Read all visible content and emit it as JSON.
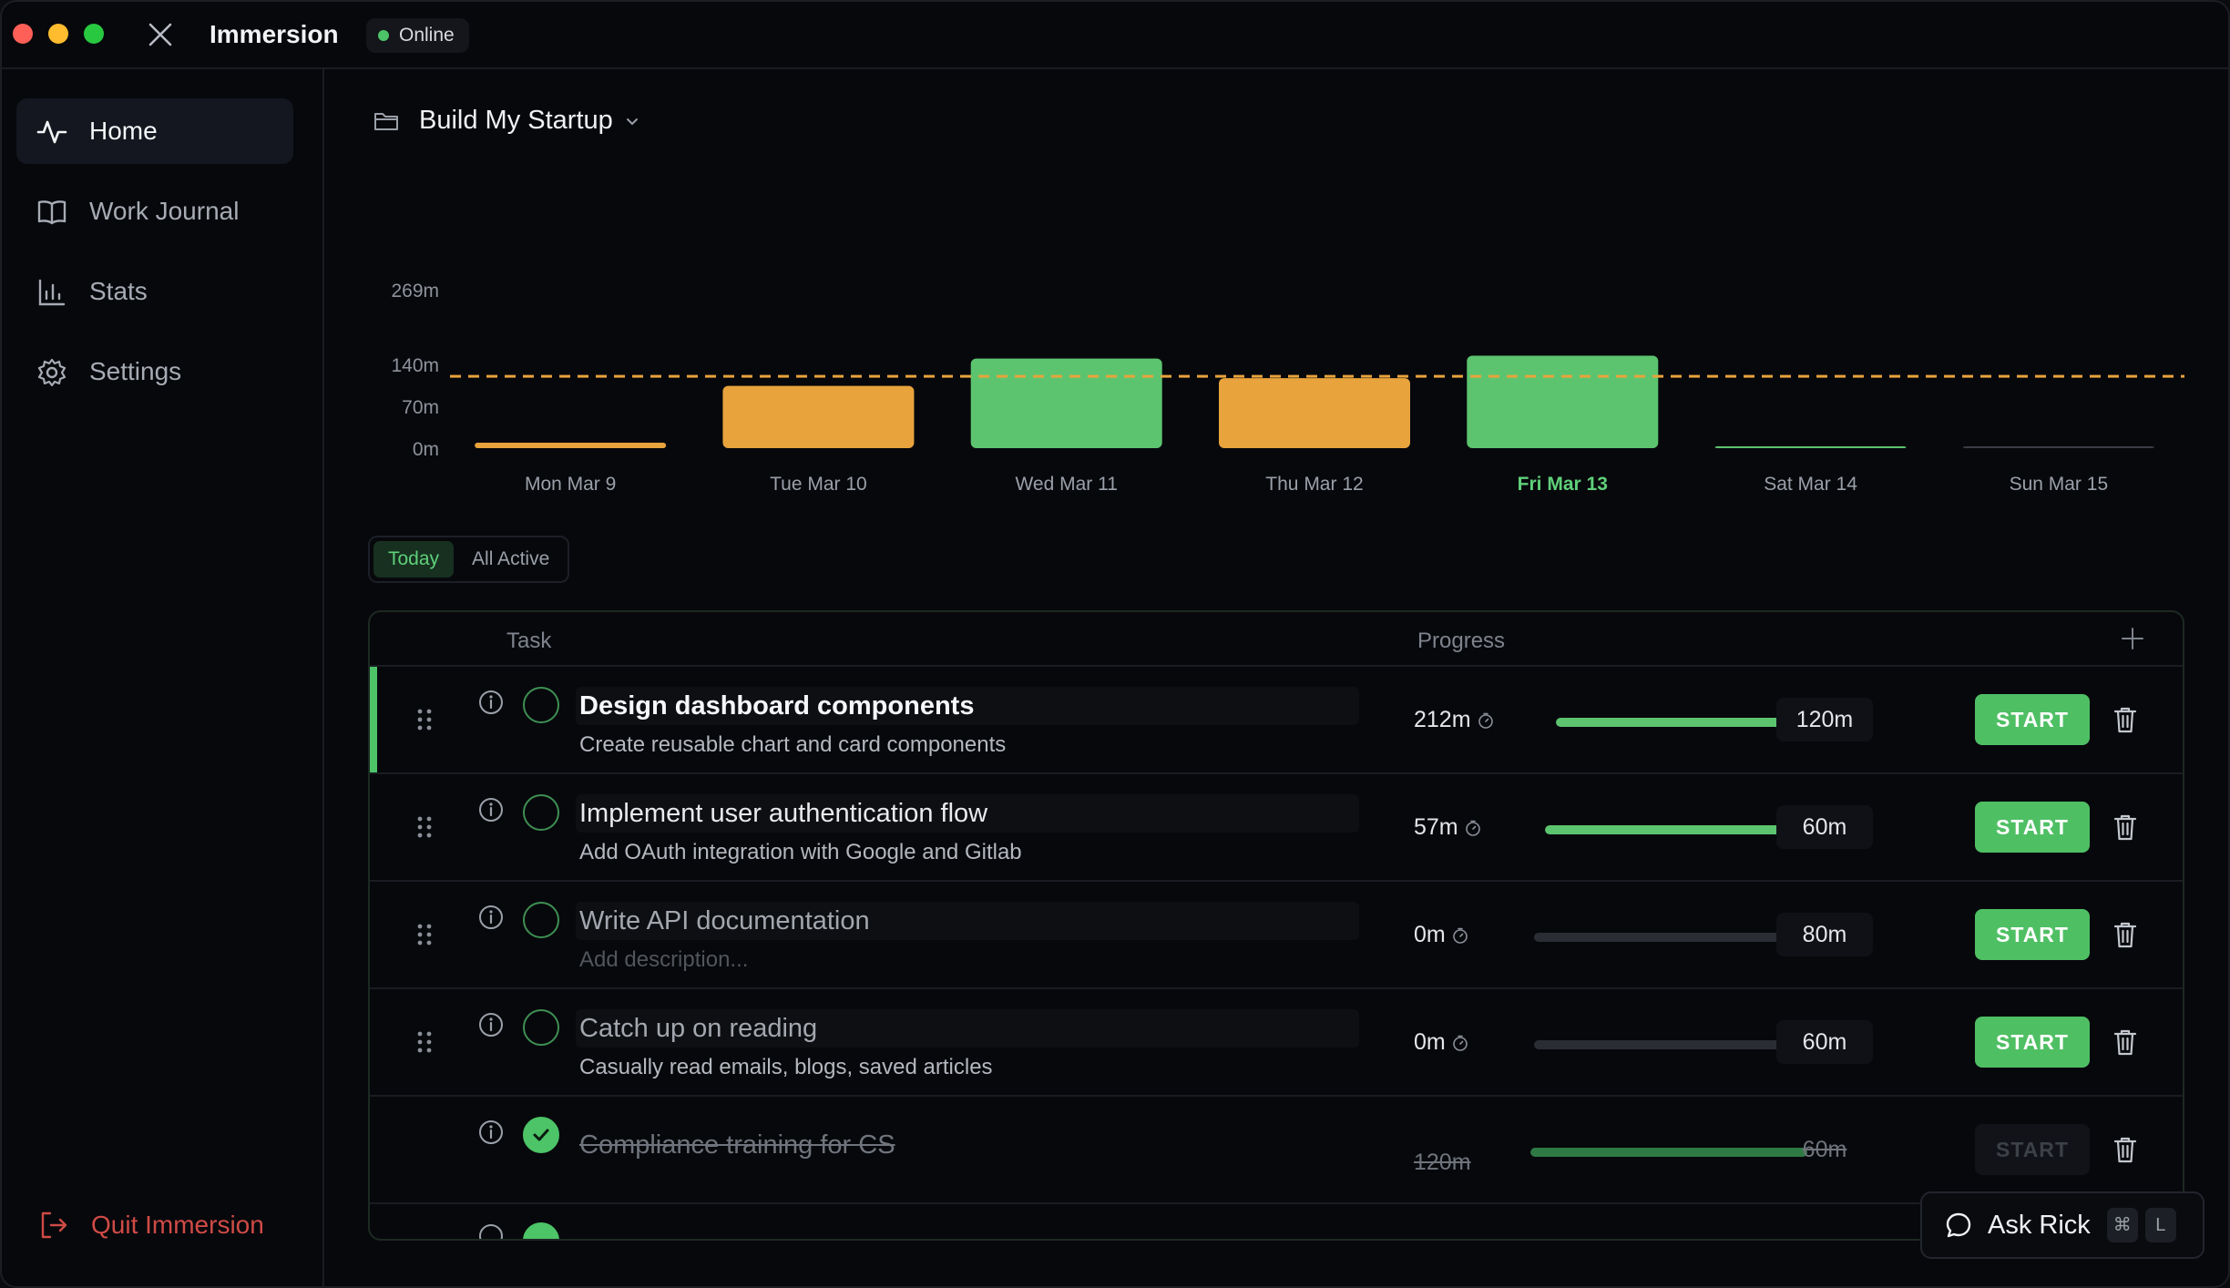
{
  "window": {
    "app_title": "Immersion",
    "status": "Online"
  },
  "sidebar": {
    "items": [
      {
        "label": "Home",
        "icon": "activity-icon",
        "active": true
      },
      {
        "label": "Work Journal",
        "icon": "book-icon",
        "active": false
      },
      {
        "label": "Stats",
        "icon": "bar-chart-icon",
        "active": false
      },
      {
        "label": "Settings",
        "icon": "gear-icon",
        "active": false
      }
    ],
    "quit_label": "Quit Immersion"
  },
  "project": {
    "name": "Build My Startup"
  },
  "chart_data": {
    "type": "bar",
    "categories": [
      "Mon Mar 9",
      "Tue Mar 10",
      "Wed Mar 11",
      "Thu Mar 12",
      "Fri Mar 13",
      "Sat Mar 14",
      "Sun Mar 15"
    ],
    "values": [
      8,
      104,
      150,
      117,
      155,
      0,
      0
    ],
    "colors": [
      "#e8a33c",
      "#e8a33c",
      "#5cc46f",
      "#e8a33c",
      "#5cc46f",
      "#5cc46f",
      "#3a3d44"
    ],
    "yticks": [
      "0m",
      "70m",
      "140m",
      "269m"
    ],
    "ytick_values": [
      0,
      70,
      140,
      269
    ],
    "ylim": [
      0,
      269
    ],
    "goal_line": 120,
    "goal_color": "#e8a33c",
    "highlight_category": "Fri Mar 13",
    "highlight_color": "#5fd07a"
  },
  "filters": {
    "today": "Today",
    "all_active": "All Active"
  },
  "table": {
    "headers": {
      "task": "Task",
      "progress": "Progress"
    },
    "rows": [
      {
        "title": "Design dashboard components",
        "description": "Create reusable chart and card components",
        "spent": "212m",
        "target": "120m",
        "progress": 1.0,
        "start_label": "START",
        "state": "active",
        "done": false
      },
      {
        "title": "Implement user authentication flow",
        "description": "Add OAuth integration with Google and Gitlab",
        "spent": "57m",
        "target": "60m",
        "progress": 0.95,
        "start_label": "START",
        "state": "normal",
        "done": false
      },
      {
        "title": "Write API documentation",
        "description": "Add description...",
        "spent": "0m",
        "target": "80m",
        "progress": 0.0,
        "start_label": "START",
        "state": "idle",
        "done": false
      },
      {
        "title": "Catch up on reading",
        "description": "Casually read emails, blogs, saved articles",
        "spent": "0m",
        "target": "60m",
        "progress": 0.0,
        "start_label": "START",
        "state": "idle",
        "done": false
      },
      {
        "title": "Compliance training for CS",
        "description": "",
        "spent": "120m",
        "target": "60m",
        "progress": 1.0,
        "start_label": "START",
        "state": "completed",
        "done": true
      }
    ]
  },
  "assistant": {
    "label": "Ask Rick",
    "shortcut_mod": "⌘",
    "shortcut_key": "L"
  }
}
